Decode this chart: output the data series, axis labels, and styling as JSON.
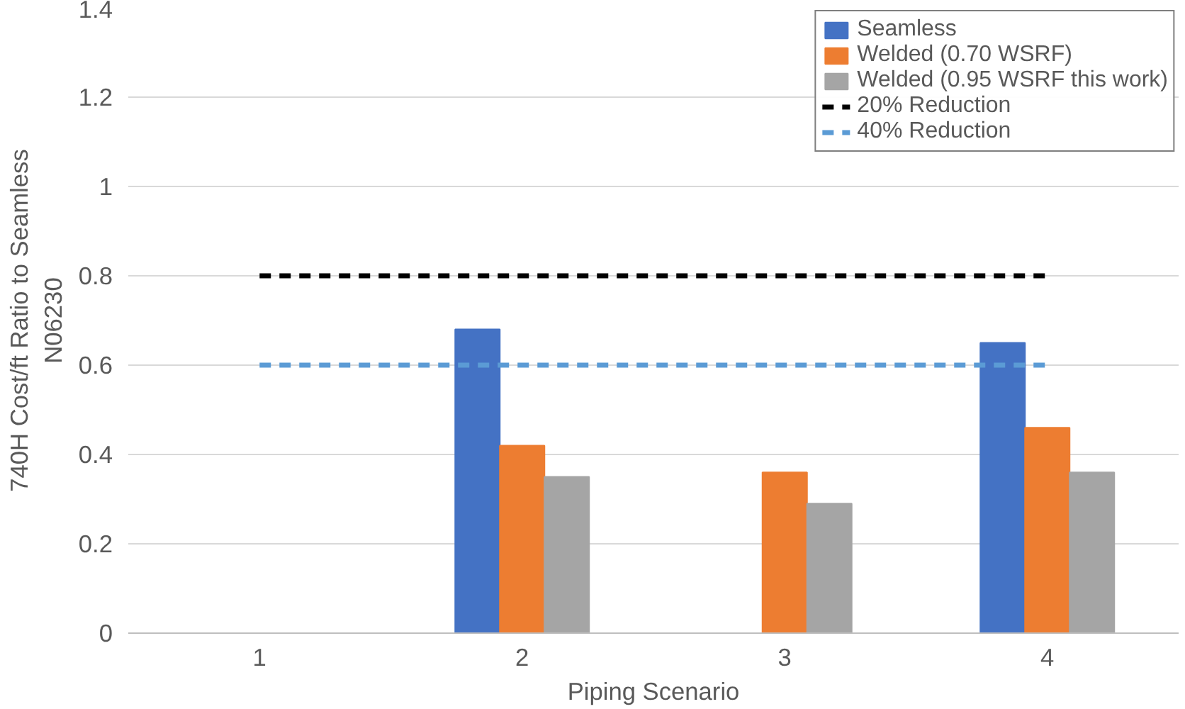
{
  "chart_data": {
    "type": "bar",
    "xlabel": "Piping Scenario",
    "ylabel": "740H Cost/ft Ratio to Seamless\nN06230",
    "categories": [
      "1",
      "2",
      "3",
      "4"
    ],
    "series": [
      {
        "name": "Seamless",
        "color": "#4472c4",
        "values": [
          null,
          0.68,
          null,
          0.65
        ]
      },
      {
        "name": "Welded (0.70 WSRF)",
        "color": "#ed7d31",
        "values": [
          null,
          0.42,
          0.36,
          0.46
        ]
      },
      {
        "name": "Welded (0.95 WSRF this work)",
        "color": "#a5a5a5",
        "values": [
          null,
          0.35,
          0.29,
          0.36
        ]
      },
      {
        "name": "20% Reduction",
        "type": "line",
        "line_style": "dashed",
        "color": "#000000",
        "values": [
          0.8,
          0.8,
          0.8,
          0.8
        ]
      },
      {
        "name": "40% Reduction",
        "type": "line",
        "line_style": "dashed",
        "color": "#5b9bd5",
        "values": [
          0.6,
          0.6,
          0.6,
          0.6
        ]
      }
    ],
    "ylim": [
      0,
      1.4
    ],
    "yticks": [
      0,
      0.2,
      0.4,
      0.6,
      0.8,
      1,
      1.2,
      1.4
    ],
    "grid": "y",
    "legend": "top right"
  }
}
